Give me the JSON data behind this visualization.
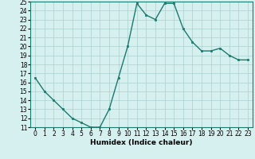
{
  "x": [
    0,
    1,
    2,
    3,
    4,
    5,
    6,
    7,
    8,
    9,
    10,
    11,
    12,
    13,
    14,
    15,
    16,
    17,
    18,
    19,
    20,
    21,
    22,
    23
  ],
  "y": [
    16.5,
    15.0,
    14.0,
    13.0,
    12.0,
    11.5,
    11.0,
    11.0,
    13.0,
    16.5,
    20.0,
    24.8,
    23.5,
    23.0,
    24.8,
    24.8,
    22.0,
    20.5,
    19.5,
    19.5,
    19.8,
    19.0,
    18.5,
    18.5
  ],
  "line_color": "#1a7a6e",
  "marker": "s",
  "marker_size": 2,
  "bg_color": "#d6f0ef",
  "grid_color": "#aacfce",
  "xlabel": "Humidex (Indice chaleur)",
  "xlim": [
    -0.5,
    23.5
  ],
  "ylim": [
    11,
    25
  ],
  "yticks": [
    11,
    12,
    13,
    14,
    15,
    16,
    17,
    18,
    19,
    20,
    21,
    22,
    23,
    24,
    25
  ],
  "xticks": [
    0,
    1,
    2,
    3,
    4,
    5,
    6,
    7,
    8,
    9,
    10,
    11,
    12,
    13,
    14,
    15,
    16,
    17,
    18,
    19,
    20,
    21,
    22,
    23
  ],
  "label_fontsize": 6.5,
  "tick_fontsize": 5.5
}
